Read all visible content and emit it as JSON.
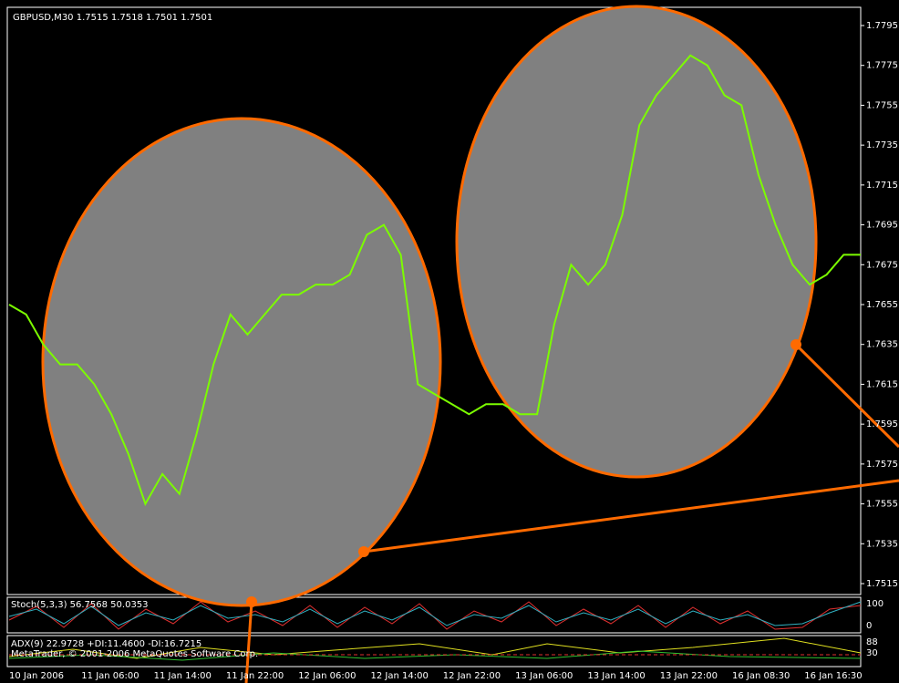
{
  "header": "GBPUSD,M30  1.7515 1.7518 1.7501 1.7501",
  "price_axis": [
    "1.7795",
    "1.7775",
    "1.7755",
    "1.7735",
    "1.7715",
    "1.7695",
    "1.7675",
    "1.7655",
    "1.7635",
    "1.7615",
    "1.7595",
    "1.7575",
    "1.7555",
    "1.7535",
    "1.7515"
  ],
  "time_axis": [
    "10 Jan 2006",
    "11 Jan 06:00",
    "11 Jan 14:00",
    "11 Jan 22:00",
    "12 Jan 06:00",
    "12 Jan 14:00",
    "12 Jan 22:00",
    "13 Jan 06:00",
    "13 Jan 14:00",
    "13 Jan 22:00",
    "16 Jan 08:30",
    "16 Jan 16:30"
  ],
  "stoch": {
    "label": "Stoch(5,3,3) 56.7568 50.0353",
    "levels": [
      "100",
      "0"
    ]
  },
  "adx": {
    "label": "ADX(9) 22.9728 +DI:11.4600 -DI:16.7215",
    "levels": [
      "88",
      "30"
    ]
  },
  "copyright": "MetaTrader, © 2001-2006 MetaQuotes Software Corp.",
  "price": {
    "color": "#7cfc00",
    "ylim": [
      1.7515,
      1.7795
    ],
    "close": [
      1.7655,
      1.765,
      1.7635,
      1.7625,
      1.7625,
      1.7615,
      1.76,
      1.758,
      1.7555,
      1.757,
      1.756,
      1.759,
      1.7625,
      1.765,
      1.764,
      1.765,
      1.766,
      1.766,
      1.7665,
      1.7665,
      1.767,
      1.769,
      1.7695,
      1.768,
      1.7615,
      1.761,
      1.7605,
      1.76,
      1.7605,
      1.7605,
      1.76,
      1.76,
      1.7645,
      1.7675,
      1.7665,
      1.7675,
      1.77,
      1.7745,
      1.776,
      1.777,
      1.778,
      1.7775,
      1.776,
      1.7755,
      1.772,
      1.7695,
      1.7675,
      1.7665,
      1.767,
      1.768,
      1.768
    ]
  }
}
